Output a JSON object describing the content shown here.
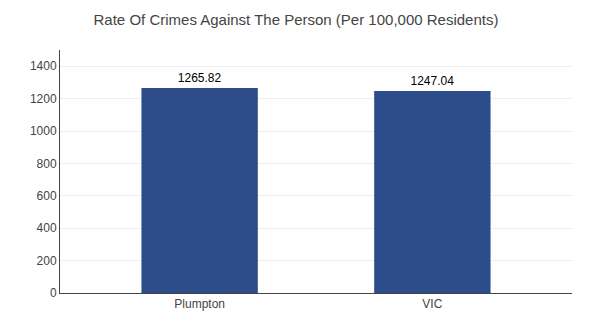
{
  "chart_data": {
    "type": "bar",
    "title": "Rate Of Crimes Against The Person (Per 100,000 Residents)",
    "categories": [
      "Plumpton",
      "VIC"
    ],
    "values": [
      1265.82,
      1247.04
    ],
    "color": "#2d4d8a",
    "ylim": [
      0,
      1500
    ],
    "yticks": [
      0,
      200,
      400,
      600,
      800,
      1000,
      1200,
      1400
    ],
    "grid": true,
    "data_labels": true
  }
}
